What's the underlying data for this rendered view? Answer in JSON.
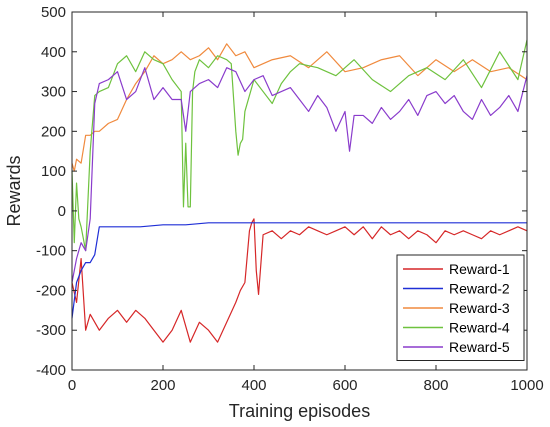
{
  "chart_data": {
    "type": "line",
    "title": "",
    "xlabel": "Training episodes",
    "ylabel": "Rewards",
    "xlim": [
      0,
      1000
    ],
    "ylim": [
      -400,
      500
    ],
    "xticks": [
      0,
      200,
      400,
      600,
      800,
      1000
    ],
    "yticks": [
      -400,
      -300,
      -200,
      -100,
      0,
      100,
      200,
      300,
      400,
      500
    ],
    "grid": false,
    "legend_position": "bottom-right",
    "series": [
      {
        "name": "Reward-1",
        "color": "#d62728",
        "x": [
          0,
          10,
          20,
          30,
          40,
          60,
          80,
          100,
          120,
          140,
          160,
          180,
          200,
          220,
          240,
          260,
          280,
          300,
          320,
          340,
          360,
          370,
          380,
          390,
          395,
          400,
          405,
          410,
          420,
          440,
          460,
          480,
          500,
          520,
          540,
          560,
          580,
          600,
          620,
          640,
          660,
          680,
          700,
          720,
          740,
          760,
          780,
          800,
          820,
          840,
          860,
          880,
          900,
          920,
          940,
          960,
          980,
          1000
        ],
        "y": [
          -180,
          -230,
          -120,
          -300,
          -260,
          -300,
          -270,
          -250,
          -280,
          -250,
          -270,
          -300,
          -330,
          -300,
          -250,
          -330,
          -280,
          -300,
          -330,
          -280,
          -230,
          -200,
          -180,
          -50,
          -30,
          -20,
          -150,
          -210,
          -60,
          -50,
          -70,
          -50,
          -60,
          -40,
          -50,
          -60,
          -50,
          -40,
          -60,
          -40,
          -70,
          -40,
          -60,
          -50,
          -70,
          -50,
          -60,
          -80,
          -50,
          -60,
          -50,
          -60,
          -70,
          -50,
          -60,
          -50,
          -40,
          -50
        ]
      },
      {
        "name": "Reward-2",
        "color": "#1f2fd6",
        "x": [
          0,
          10,
          20,
          30,
          40,
          50,
          60,
          80,
          100,
          150,
          200,
          250,
          300,
          350,
          400,
          450,
          500,
          550,
          600,
          650,
          700,
          750,
          800,
          850,
          900,
          950,
          1000
        ],
        "y": [
          -270,
          -180,
          -150,
          -130,
          -130,
          -110,
          -40,
          -40,
          -40,
          -40,
          -35,
          -35,
          -30,
          -30,
          -30,
          -30,
          -30,
          -30,
          -30,
          -30,
          -30,
          -30,
          -30,
          -30,
          -30,
          -30,
          -30
        ]
      },
      {
        "name": "Reward-3",
        "color": "#f08a3e",
        "x": [
          0,
          5,
          10,
          20,
          30,
          40,
          50,
          60,
          80,
          100,
          120,
          140,
          160,
          180,
          200,
          220,
          240,
          260,
          280,
          300,
          320,
          340,
          360,
          380,
          400,
          440,
          480,
          520,
          560,
          600,
          640,
          680,
          720,
          760,
          800,
          840,
          880,
          920,
          960,
          1000
        ],
        "y": [
          120,
          100,
          130,
          120,
          190,
          190,
          200,
          200,
          220,
          230,
          280,
          320,
          350,
          390,
          370,
          380,
          400,
          380,
          390,
          410,
          380,
          420,
          390,
          400,
          360,
          380,
          390,
          360,
          400,
          350,
          360,
          380,
          390,
          340,
          380,
          350,
          380,
          350,
          360,
          330
        ]
      },
      {
        "name": "Reward-4",
        "color": "#6ec23e",
        "x": [
          0,
          5,
          10,
          15,
          20,
          30,
          40,
          50,
          60,
          80,
          100,
          120,
          140,
          160,
          180,
          200,
          220,
          240,
          245,
          250,
          255,
          260,
          265,
          270,
          280,
          300,
          320,
          340,
          350,
          360,
          365,
          370,
          375,
          380,
          400,
          420,
          440,
          460,
          480,
          500,
          540,
          580,
          620,
          660,
          700,
          740,
          780,
          820,
          860,
          900,
          940,
          980,
          1000
        ],
        "y": [
          100,
          -80,
          70,
          -20,
          -40,
          -100,
          150,
          290,
          300,
          310,
          370,
          390,
          350,
          400,
          380,
          370,
          330,
          300,
          10,
          170,
          10,
          10,
          300,
          350,
          380,
          360,
          390,
          380,
          370,
          200,
          140,
          170,
          180,
          250,
          330,
          300,
          270,
          320,
          350,
          370,
          360,
          340,
          380,
          330,
          300,
          340,
          360,
          330,
          380,
          310,
          400,
          330,
          430
        ]
      },
      {
        "name": "Reward-5",
        "color": "#8a3ccc",
        "x": [
          0,
          10,
          20,
          30,
          40,
          50,
          60,
          80,
          100,
          120,
          140,
          160,
          180,
          200,
          220,
          240,
          250,
          260,
          280,
          300,
          320,
          340,
          360,
          380,
          400,
          420,
          440,
          460,
          480,
          500,
          520,
          540,
          560,
          580,
          600,
          610,
          620,
          640,
          660,
          680,
          700,
          720,
          740,
          760,
          780,
          800,
          820,
          840,
          860,
          880,
          900,
          920,
          940,
          960,
          980,
          1000
        ],
        "y": [
          -180,
          -120,
          -80,
          -100,
          -20,
          270,
          320,
          330,
          350,
          280,
          300,
          360,
          280,
          310,
          280,
          280,
          200,
          300,
          320,
          330,
          310,
          360,
          350,
          300,
          330,
          340,
          290,
          300,
          310,
          280,
          250,
          290,
          260,
          200,
          250,
          150,
          240,
          240,
          220,
          260,
          230,
          250,
          280,
          240,
          290,
          300,
          270,
          290,
          250,
          230,
          280,
          240,
          260,
          290,
          250,
          340
        ]
      }
    ]
  }
}
